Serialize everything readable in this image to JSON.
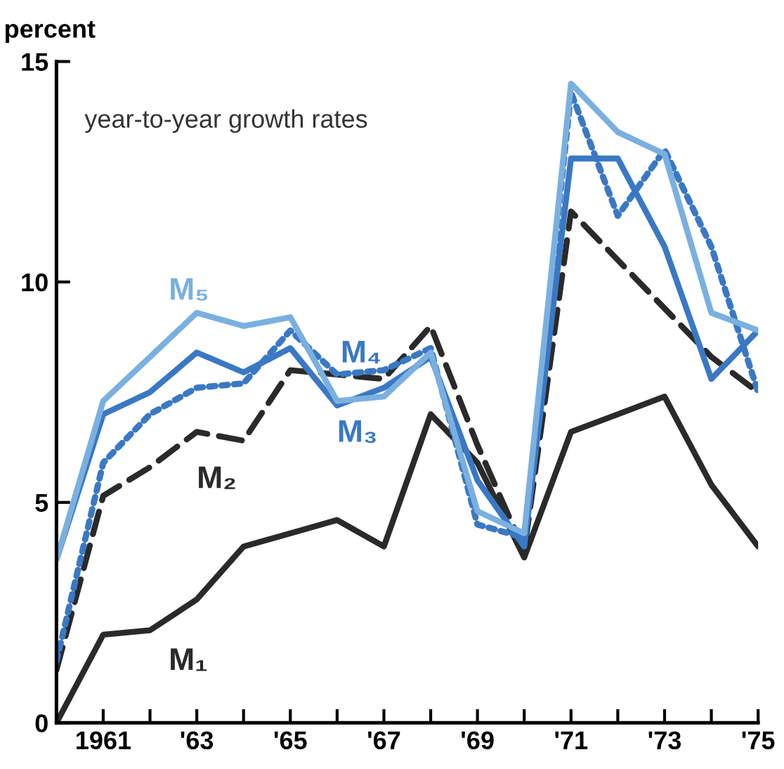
{
  "chart_data": {
    "type": "line",
    "ylabel": "percent",
    "annotations": [
      "year-to-year growth rates"
    ],
    "x": [
      1960,
      1961,
      1962,
      1963,
      1964,
      1965,
      1966,
      1967,
      1968,
      1969,
      1970,
      1971,
      1972,
      1973,
      1974,
      1975
    ],
    "series": [
      {
        "name": "M₁",
        "color": "#2a2a2a",
        "line_style": "solid",
        "values": [
          0,
          2.0,
          2.1,
          2.8,
          4.0,
          4.3,
          4.6,
          4.0,
          7.0,
          5.9,
          3.75,
          6.6,
          7.0,
          7.4,
          5.4,
          4.0
        ]
      },
      {
        "name": "M₂",
        "color": "#2a2a2a",
        "line_style": "dashed",
        "values": [
          1.2,
          5.15,
          5.8,
          6.6,
          6.4,
          8.0,
          7.9,
          7.8,
          9.0,
          6.3,
          3.9,
          11.6,
          10.5,
          9.4,
          8.3,
          7.5
        ]
      },
      {
        "name": "M₃",
        "color": "#3a78c4",
        "line_style": "solid",
        "values": [
          3.7,
          7.0,
          7.5,
          8.4,
          7.95,
          8.5,
          7.2,
          7.6,
          8.3,
          5.5,
          4.0,
          12.8,
          12.8,
          10.8,
          7.8,
          8.9
        ]
      },
      {
        "name": "M₄",
        "color": "#3a78c4",
        "line_style": "dotted",
        "values": [
          1.4,
          5.9,
          7.0,
          7.6,
          7.7,
          8.9,
          7.9,
          8.0,
          8.5,
          4.5,
          4.2,
          14.3,
          11.5,
          13.0,
          10.8,
          7.5
        ]
      },
      {
        "name": "M₅",
        "color": "#7ab0e0",
        "line_style": "solid",
        "values": [
          3.7,
          7.3,
          8.3,
          9.3,
          9.0,
          9.2,
          7.3,
          7.4,
          8.4,
          4.8,
          4.3,
          14.5,
          13.4,
          12.9,
          9.3,
          8.9
        ]
      }
    ],
    "xlim": [
      1960,
      1975
    ],
    "xticks": [
      {
        "value": 1960,
        "label": null
      },
      {
        "value": 1961,
        "label": "1961"
      },
      {
        "value": 1962,
        "label": null
      },
      {
        "value": 1963,
        "label": "'63"
      },
      {
        "value": 1964,
        "label": null
      },
      {
        "value": 1965,
        "label": "'65"
      },
      {
        "value": 1966,
        "label": null
      },
      {
        "value": 1967,
        "label": "'67"
      },
      {
        "value": 1968,
        "label": null
      },
      {
        "value": 1969,
        "label": "'69"
      },
      {
        "value": 1970,
        "label": null
      },
      {
        "value": 1971,
        "label": "'71"
      },
      {
        "value": 1972,
        "label": null
      },
      {
        "value": 1973,
        "label": "'73"
      },
      {
        "value": 1974,
        "label": null
      },
      {
        "value": 1975,
        "label": "'75"
      }
    ],
    "ylim": [
      0,
      15
    ],
    "yticks": [
      0,
      5,
      10,
      15
    ],
    "grid": false,
    "legend": false,
    "marker": "none"
  }
}
